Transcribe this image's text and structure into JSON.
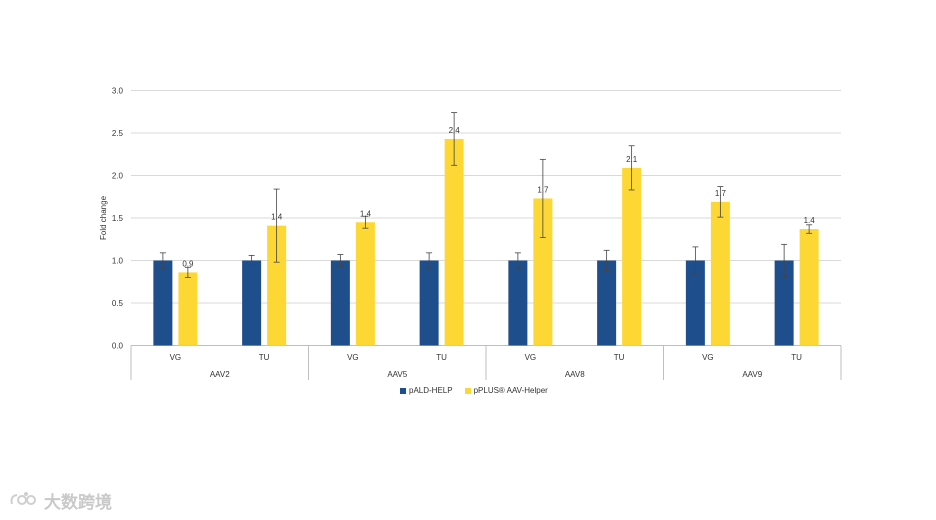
{
  "chart_data": {
    "type": "bar",
    "ylabel": "Fold change",
    "ylim": [
      0,
      3.0
    ],
    "yticks": [
      "0.0",
      "0.5",
      "1.0",
      "1.5",
      "2.0",
      "2.5",
      "3.0"
    ],
    "grid": true,
    "legend_position": "bottom",
    "groups": [
      {
        "name": "AAV2",
        "categories": [
          "VG",
          "TU"
        ]
      },
      {
        "name": "AAV5",
        "categories": [
          "VG",
          "TU"
        ]
      },
      {
        "name": "AAV8",
        "categories": [
          "VG",
          "TU"
        ]
      },
      {
        "name": "AAV9",
        "categories": [
          "VG",
          "TU"
        ]
      }
    ],
    "series": [
      {
        "name": "pALD-HELP",
        "color": "#1f4e8c",
        "values": [
          1.0,
          1.0,
          1.0,
          1.0,
          1.0,
          1.0,
          1.0,
          1.0
        ],
        "errors": [
          0.09,
          0.06,
          0.07,
          0.09,
          0.09,
          0.12,
          0.16,
          0.19
        ]
      },
      {
        "name": "pPLUS® AAV-Helper",
        "color": "#fdd835",
        "values": [
          0.86,
          1.41,
          1.45,
          2.43,
          1.73,
          2.09,
          1.69,
          1.37
        ],
        "errors": [
          0.06,
          0.43,
          0.07,
          0.31,
          0.46,
          0.26,
          0.18,
          0.05
        ],
        "labels": [
          "0.9",
          "1.4",
          "1.4",
          "2.4",
          "1.7",
          "2.1",
          "1.7",
          "1.4"
        ]
      }
    ]
  },
  "watermark": {
    "text": "大数跨境"
  }
}
